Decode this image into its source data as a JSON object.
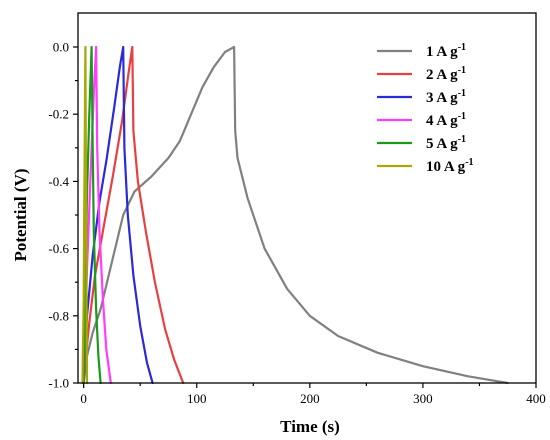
{
  "chart_data": {
    "type": "line",
    "title": "",
    "xlabel": "Time (s)",
    "ylabel": "Potential (V)",
    "xlim": [
      -5,
      400
    ],
    "ylim": [
      -1.0,
      0.05
    ],
    "x_ticks": [
      0,
      100,
      200,
      300,
      400
    ],
    "y_ticks": [
      -1.0,
      -0.8,
      -0.6,
      -0.4,
      -0.2,
      0.0
    ],
    "x_tick_labels": [
      "0",
      "100",
      "200",
      "300",
      "400"
    ],
    "y_tick_labels": [
      "-1.0",
      "-0.8",
      "-0.6",
      "-0.4",
      "-0.2",
      "0.0"
    ],
    "grid": false,
    "legend_position": "top-right",
    "series": [
      {
        "name": "1 A g",
        "name_sup": "-1",
        "color": "#808080",
        "points": [
          [
            0,
            -1.0
          ],
          [
            1,
            -0.97
          ],
          [
            3,
            -0.92
          ],
          [
            8,
            -0.85
          ],
          [
            15,
            -0.78
          ],
          [
            25,
            -0.64
          ],
          [
            35,
            -0.5
          ],
          [
            45,
            -0.43
          ],
          [
            60,
            -0.385
          ],
          [
            75,
            -0.33
          ],
          [
            85,
            -0.28
          ],
          [
            95,
            -0.2
          ],
          [
            105,
            -0.12
          ],
          [
            115,
            -0.06
          ],
          [
            125,
            -0.015
          ],
          [
            133,
            0.0
          ],
          [
            134,
            -0.25
          ],
          [
            136,
            -0.33
          ],
          [
            145,
            -0.45
          ],
          [
            160,
            -0.6
          ],
          [
            180,
            -0.72
          ],
          [
            200,
            -0.8
          ],
          [
            225,
            -0.86
          ],
          [
            260,
            -0.91
          ],
          [
            300,
            -0.95
          ],
          [
            340,
            -0.98
          ],
          [
            375,
            -1.0
          ]
        ]
      },
      {
        "name": "2 A g",
        "name_sup": "-1",
        "color": "#e84040",
        "points": [
          [
            0,
            -1.0
          ],
          [
            2,
            -0.92
          ],
          [
            5,
            -0.82
          ],
          [
            10,
            -0.68
          ],
          [
            18,
            -0.53
          ],
          [
            26,
            -0.38
          ],
          [
            34,
            -0.22
          ],
          [
            40,
            -0.07
          ],
          [
            43,
            0.0
          ],
          [
            44,
            -0.25
          ],
          [
            48,
            -0.4
          ],
          [
            55,
            -0.55
          ],
          [
            63,
            -0.7
          ],
          [
            72,
            -0.84
          ],
          [
            80,
            -0.93
          ],
          [
            88,
            -1.0
          ]
        ]
      },
      {
        "name": "3 A g",
        "name_sup": "-1",
        "color": "#2a2ad8",
        "points": [
          [
            0,
            -1.0
          ],
          [
            1,
            -0.92
          ],
          [
            3,
            -0.8
          ],
          [
            8,
            -0.62
          ],
          [
            14,
            -0.46
          ],
          [
            20,
            -0.34
          ],
          [
            27,
            -0.18
          ],
          [
            32,
            -0.06
          ],
          [
            35,
            0.0
          ],
          [
            36,
            -0.3
          ],
          [
            39,
            -0.5
          ],
          [
            44,
            -0.68
          ],
          [
            50,
            -0.83
          ],
          [
            56,
            -0.94
          ],
          [
            61,
            -1.0
          ]
        ]
      },
      {
        "name": "4 A g",
        "name_sup": "-1",
        "color": "#ff3cff",
        "points": [
          [
            0,
            -1.0
          ],
          [
            1,
            -0.88
          ],
          [
            3,
            -0.66
          ],
          [
            5,
            -0.48
          ],
          [
            7,
            -0.3
          ],
          [
            9,
            -0.14
          ],
          [
            11,
            0.0
          ],
          [
            12,
            -0.3
          ],
          [
            14,
            -0.55
          ],
          [
            17,
            -0.75
          ],
          [
            20,
            -0.9
          ],
          [
            24,
            -1.0
          ]
        ]
      },
      {
        "name": "5 A g",
        "name_sup": "-1",
        "color": "#1a9a1a",
        "points": [
          [
            0,
            -1.0
          ],
          [
            1,
            -0.82
          ],
          [
            2,
            -0.62
          ],
          [
            3,
            -0.44
          ],
          [
            5,
            -0.2
          ],
          [
            7,
            0.0
          ],
          [
            8,
            -0.3
          ],
          [
            9,
            -0.55
          ],
          [
            11,
            -0.78
          ],
          [
            13,
            -0.92
          ],
          [
            15,
            -1.0
          ]
        ]
      },
      {
        "name": "10 A g",
        "name_sup": "-1",
        "color": "#a8a800",
        "points": [
          [
            -1,
            -1.0
          ],
          [
            0,
            -0.75
          ],
          [
            0.5,
            -0.5
          ],
          [
            1,
            -0.25
          ],
          [
            1.5,
            0.0
          ],
          [
            2,
            -0.35
          ],
          [
            2.5,
            -0.7
          ],
          [
            3,
            -1.0
          ]
        ]
      }
    ]
  }
}
